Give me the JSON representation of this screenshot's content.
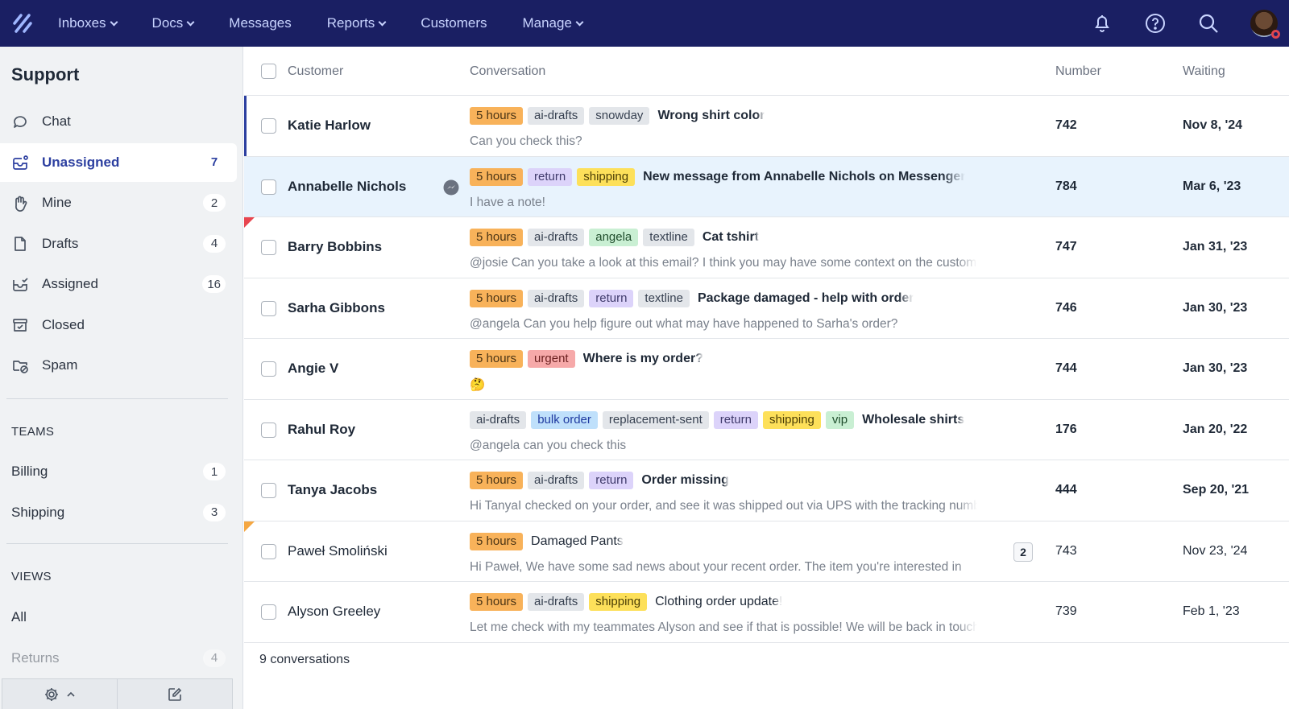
{
  "nav": {
    "items": [
      {
        "label": "Inboxes",
        "dropdown": true
      },
      {
        "label": "Docs",
        "dropdown": true
      },
      {
        "label": "Messages",
        "dropdown": false
      },
      {
        "label": "Reports",
        "dropdown": true
      },
      {
        "label": "Customers",
        "dropdown": false
      },
      {
        "label": "Manage",
        "dropdown": true
      }
    ],
    "icons": [
      "bell-icon",
      "help-icon",
      "search-icon",
      "avatar"
    ],
    "bg": "#1a1f63"
  },
  "sidebar": {
    "title": "Support",
    "items": [
      {
        "label": "Chat",
        "count": "",
        "icon": "chat-icon"
      },
      {
        "label": "Unassigned",
        "count": "7",
        "icon": "inbox-unassigned-icon",
        "active": true
      },
      {
        "label": "Mine",
        "count": "2",
        "icon": "hand-icon"
      },
      {
        "label": "Drafts",
        "count": "4",
        "icon": "draft-icon"
      },
      {
        "label": "Assigned",
        "count": "16",
        "icon": "inbox-check-icon"
      },
      {
        "label": "Closed",
        "count": "",
        "icon": "archive-icon"
      },
      {
        "label": "Spam",
        "count": "",
        "icon": "spam-icon"
      }
    ],
    "teams_label": "TEAMS",
    "teams": [
      {
        "label": "Billing",
        "count": "1"
      },
      {
        "label": "Shipping",
        "count": "3"
      }
    ],
    "views_label": "VIEWS",
    "views": [
      {
        "label": "All",
        "count": ""
      },
      {
        "label": "Returns",
        "count": "4"
      }
    ]
  },
  "table": {
    "headers": {
      "customer": "Customer",
      "conversation": "Conversation",
      "number": "Number",
      "waiting": "Waiting"
    },
    "tag_colors": {
      "5 hours": [
        "#f8b25a",
        "#4a3415"
      ],
      "ai-drafts": [
        "#e3e6ea",
        "#374151"
      ],
      "snowday": [
        "#e3e6ea",
        "#374151"
      ],
      "textline": [
        "#e3e6ea",
        "#374151"
      ],
      "replacement-sent": [
        "#e3e6ea",
        "#374151"
      ],
      "return": [
        "#dcd3fa",
        "#3f3a6b"
      ],
      "shipping": [
        "#fde05a",
        "#4a3d05"
      ],
      "angela": [
        "#c9efd3",
        "#1f4d2c"
      ],
      "vip": [
        "#c9efd3",
        "#1f4d2c"
      ],
      "urgent": [
        "#f6a9a9",
        "#6b1f1f"
      ],
      "bulk order": [
        "#bfe0fb",
        "#1f3aa0"
      ]
    },
    "rows": [
      {
        "customer": "Katie Harlow",
        "tags": [
          "5 hours",
          "ai-drafts",
          "snowday"
        ],
        "subject": "Wrong shirt color",
        "preview": "Can you check this?",
        "number": "742",
        "waiting": "Nov 8, '24",
        "unread": true,
        "selected": true
      },
      {
        "customer": "Annabelle Nichols",
        "tags": [
          "5 hours",
          "return",
          "shipping"
        ],
        "subject": "New message from Annabelle Nichols on Messenger",
        "preview": "I have a note!",
        "number": "784",
        "waiting": "Mar 6, '23",
        "unread": true,
        "highlighted": true,
        "channel_icon": "messenger-icon"
      },
      {
        "customer": "Barry Bobbins",
        "tags": [
          "5 hours",
          "ai-drafts",
          "angela",
          "textline"
        ],
        "subject": "Cat tshirt",
        "preview": "@josie Can you take a look at this email? I think you may have some context on the customer",
        "number": "747",
        "waiting": "Jan 31, '23",
        "unread": true,
        "flag": "#e8454f"
      },
      {
        "customer": "Sarha Gibbons",
        "tags": [
          "5 hours",
          "ai-drafts",
          "return",
          "textline"
        ],
        "subject": "Package damaged - help with order",
        "preview": "@angela Can you help figure out what may have happened to Sarha's order?",
        "number": "746",
        "waiting": "Jan 30, '23",
        "unread": true
      },
      {
        "customer": "Angie V",
        "tags": [
          "5 hours",
          "urgent"
        ],
        "subject": "Where is my order?",
        "preview": "🤔",
        "number": "744",
        "waiting": "Jan 30, '23",
        "unread": true
      },
      {
        "customer": "Rahul Roy",
        "tags": [
          "ai-drafts",
          "bulk order",
          "replacement-sent",
          "return",
          "shipping",
          "vip"
        ],
        "subject": "Wholesale shirts",
        "preview": "@angela can you check this",
        "number": "176",
        "waiting": "Jan 20, '22",
        "unread": true
      },
      {
        "customer": "Tanya Jacobs",
        "tags": [
          "5 hours",
          "ai-drafts",
          "return"
        ],
        "subject": "Order missing",
        "preview": "Hi TanyaI checked on your order, and see it was shipped out via UPS with the tracking number",
        "number": "444",
        "waiting": "Sep 20, '21",
        "unread": true
      },
      {
        "customer": "Paweł Smoliński",
        "tags": [
          "5 hours"
        ],
        "subject": "Damaged Pants",
        "preview": "Hi Paweł, We have some sad news about your recent order. The item you're interested in",
        "number": "743",
        "waiting": "Nov 23, '24",
        "unread": false,
        "flag": "#f5a742",
        "thread_count": "2"
      },
      {
        "customer": "Alyson Greeley",
        "tags": [
          "5 hours",
          "ai-drafts",
          "shipping"
        ],
        "subject": "Clothing order update!",
        "preview": "Let me check with my teammates Alyson and see if that is possible! We will be back in touch",
        "number": "739",
        "waiting": "Feb 1, '23",
        "unread": false
      }
    ],
    "footer": "9 conversations"
  }
}
